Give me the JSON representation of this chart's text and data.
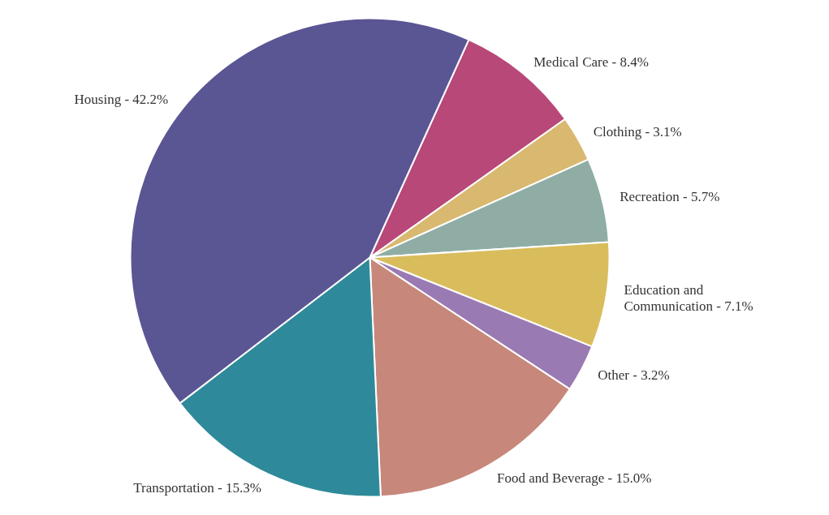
{
  "chart_data": {
    "type": "pie",
    "categories": [
      "Medical Care - 8.4%",
      "Clothing - 3.1%",
      "Recreation - 5.7%",
      "Education and Communication - 7.1%",
      "Other - 3.2%",
      "Food and Beverage - 15.0%",
      "Transportation - 15.3%",
      "Housing - 42.2%"
    ],
    "values": [
      8.4,
      3.1,
      5.7,
      7.1,
      3.2,
      15.0,
      15.3,
      42.2
    ],
    "colors": [
      "#b84878",
      "#d9b870",
      "#8fada5",
      "#d9bd5c",
      "#9a7ab3",
      "#c7877a",
      "#2e8a9a",
      "#5a5593"
    ]
  }
}
